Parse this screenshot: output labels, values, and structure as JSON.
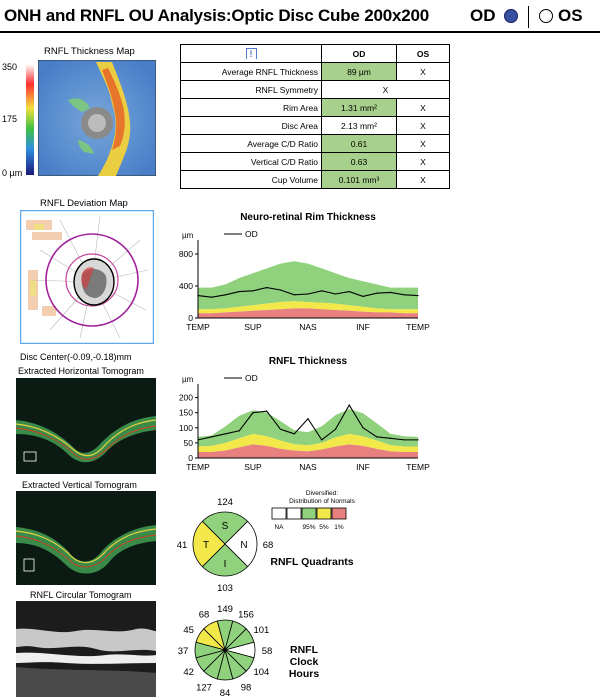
{
  "header": {
    "title": "ONH and RNFL OU Analysis:Optic Disc Cube 200x200",
    "od_label": "OD",
    "os_label": "OS"
  },
  "thickness_map": {
    "title": "RNFL Thickness Map",
    "scale_max": "350",
    "scale_mid": "175",
    "scale_min": "0 µm"
  },
  "param_table": {
    "warn_symbol": "!",
    "col_od": "OD",
    "col_os": "OS",
    "rows": [
      {
        "name": "Average RNFL Thickness",
        "od": "89 µm",
        "os": "X"
      },
      {
        "name": "RNFL Symmetry",
        "od": "X",
        "os": ""
      },
      {
        "name": "Rim Area",
        "od": "1.31 mm²",
        "os": "X"
      },
      {
        "name": "Disc Area",
        "od": "2.13 mm²",
        "os": "X"
      },
      {
        "name": "Average C/D Ratio",
        "od": "0.61",
        "os": "X"
      },
      {
        "name": "Vertical C/D Ratio",
        "od": "0.63",
        "os": "X"
      },
      {
        "name": "Cup Volume",
        "od": "0.101 mm³",
        "os": "X"
      }
    ]
  },
  "deviation_map": {
    "title": "RNFL Deviation Map",
    "disc_center": "Disc Center(-0.09,-0.18)mm"
  },
  "tomograms": {
    "horizontal": "Extracted Horizontal Tomogram",
    "vertical": "Extracted Vertical Tomogram",
    "circular": "RNFL Circular Tomogram"
  },
  "colors": {
    "green": "#8fd17c",
    "yellow": "#f2e84a",
    "red": "#e88080",
    "white": "#ffffff",
    "od_blue": "#3a4fa0"
  },
  "chart_data": [
    {
      "type": "line",
      "title": "Neuro-retinal Rim Thickness",
      "ylabel": "µm",
      "legend": "OD",
      "x_labels": [
        "TEMP",
        "SUP",
        "NAS",
        "INF",
        "TEMP"
      ],
      "y_ticks": [
        0,
        400,
        800
      ],
      "ylim": [
        0,
        900
      ],
      "x": [
        0,
        16,
        32,
        48,
        64,
        80,
        96,
        112,
        128,
        144,
        160,
        176,
        192,
        208,
        224,
        240,
        256
      ],
      "bands": {
        "red_top": [
          60,
          60,
          70,
          80,
          90,
          100,
          110,
          120,
          120,
          110,
          100,
          90,
          80,
          70,
          70,
          60,
          60
        ],
        "yellow_top": [
          110,
          110,
          120,
          140,
          160,
          180,
          200,
          210,
          200,
          190,
          180,
          160,
          140,
          120,
          110,
          110,
          110
        ],
        "green_top": [
          380,
          380,
          420,
          500,
          560,
          620,
          680,
          710,
          680,
          620,
          560,
          500,
          460,
          420,
          380,
          380,
          380
        ]
      },
      "series": [
        {
          "name": "OD",
          "values": [
            280,
            260,
            290,
            330,
            340,
            380,
            350,
            290,
            300,
            340,
            300,
            330,
            270,
            310,
            320,
            290,
            280
          ]
        }
      ]
    },
    {
      "type": "line",
      "title": "RNFL Thickness",
      "ylabel": "µm",
      "legend": "OD",
      "x_labels": [
        "TEMP",
        "SUP",
        "NAS",
        "INF",
        "TEMP"
      ],
      "y_ticks": [
        0,
        50,
        100,
        150,
        200
      ],
      "ylim": [
        0,
        225
      ],
      "x": [
        0,
        16,
        32,
        48,
        64,
        80,
        96,
        112,
        128,
        144,
        160,
        176,
        192,
        208,
        224,
        240,
        256
      ],
      "bands": {
        "red_top": [
          20,
          20,
          25,
          35,
          45,
          40,
          30,
          25,
          22,
          28,
          38,
          45,
          40,
          30,
          22,
          20,
          20
        ],
        "yellow_top": [
          38,
          40,
          50,
          65,
          80,
          72,
          58,
          45,
          42,
          50,
          68,
          80,
          72,
          58,
          42,
          38,
          38
        ],
        "green_top": [
          70,
          75,
          105,
          140,
          158,
          150,
          122,
          92,
          85,
          105,
          142,
          162,
          148,
          115,
          80,
          72,
          70
        ]
      },
      "series": [
        {
          "name": "OD",
          "values": [
            60,
            70,
            80,
            90,
            150,
            155,
            95,
            80,
            130,
            60,
            95,
            175,
            100,
            70,
            65,
            60,
            60
          ]
        }
      ]
    },
    {
      "type": "pie",
      "title": "RNFL Quadrants",
      "categories": [
        "S",
        "N",
        "I",
        "T"
      ],
      "values": [
        124,
        68,
        103,
        41
      ],
      "status": [
        "green",
        "white",
        "green",
        "yellow"
      ],
      "legend": {
        "title_line1": "Diversified:",
        "title_line2": "Distribution of Normals",
        "labels": [
          "NA",
          "95%",
          "5%",
          "1%"
        ]
      }
    },
    {
      "type": "pie",
      "title": "RNFL Clock Hours",
      "categories": [
        "12",
        "1",
        "2",
        "3",
        "4",
        "5",
        "6",
        "7",
        "8",
        "9",
        "10",
        "11"
      ],
      "values": [
        149,
        156,
        101,
        58,
        104,
        98,
        84,
        127,
        42,
        37,
        45,
        68
      ],
      "status": [
        "green",
        "green",
        "green",
        "white",
        "green",
        "green",
        "green",
        "green",
        "green",
        "green",
        "yellow",
        "yellow"
      ]
    }
  ]
}
